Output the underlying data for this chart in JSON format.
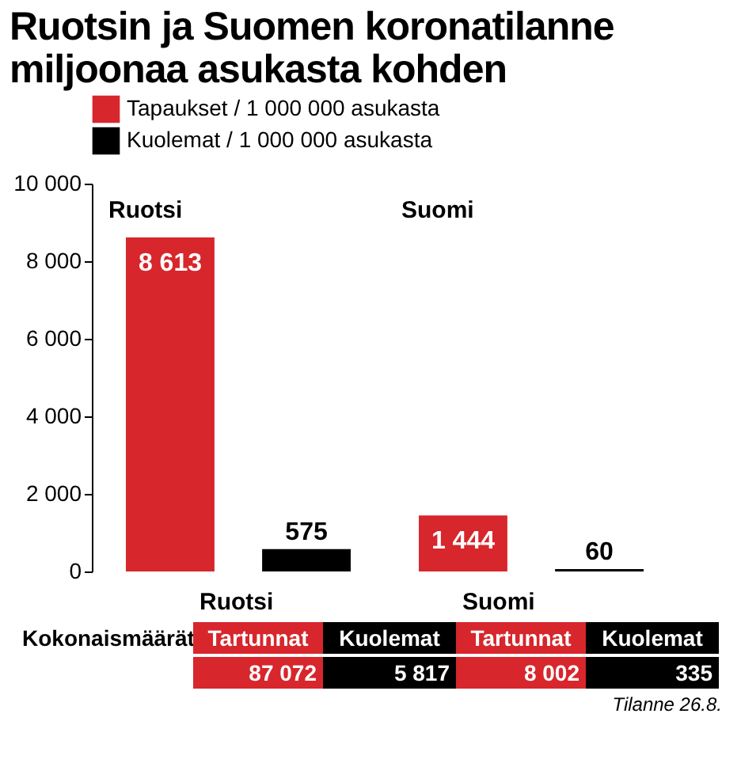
{
  "chart_data": {
    "type": "bar",
    "title": "Ruotsin ja Suomen koronatilanne miljoonaa asukasta kohden",
    "categories": [
      "Ruotsi",
      "Suomi"
    ],
    "series": [
      {
        "name": "Tapaukset / 1 000 000 asukasta",
        "color": "#d7262c",
        "values": [
          8613,
          1444
        ],
        "value_labels": [
          "8 613",
          "1 444"
        ]
      },
      {
        "name": "Kuolemat / 1 000 000 asukasta",
        "color": "#000000",
        "values": [
          575,
          60
        ],
        "value_labels": [
          "575",
          "60"
        ]
      }
    ],
    "ylim": [
      0,
      10000
    ],
    "yticks": [
      0,
      {
        "value": 2000,
        "label": "2 000"
      },
      {
        "value": 4000,
        "label": "4 000"
      },
      {
        "value": 6000,
        "label": "6 000"
      },
      {
        "value": 8000,
        "label": "8 000"
      },
      {
        "value": 10000,
        "label": "10 000"
      }
    ],
    "legend": "top left",
    "annotations": [
      "Kokonaismäärät",
      "Ruotsi",
      "Tartunnat",
      "Kuolemat",
      "87 072",
      "5 817",
      "Suomi",
      "Tartunnat",
      "Kuolemat",
      "8 002",
      "335",
      "Tilanne 26.8."
    ]
  }
}
